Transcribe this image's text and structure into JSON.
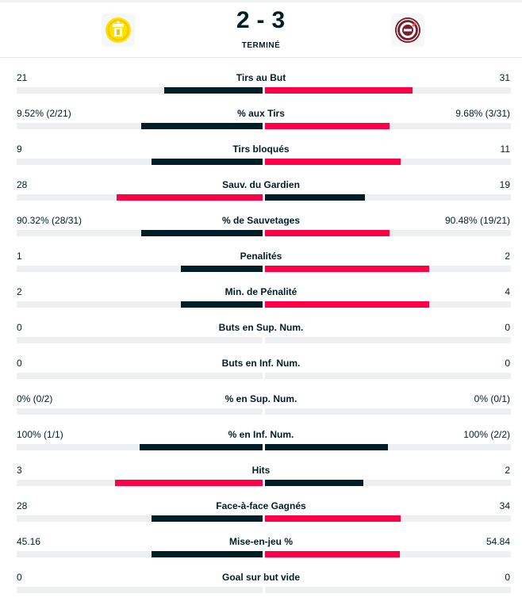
{
  "match": {
    "home_score": "2",
    "separator": "-",
    "away_score": "3",
    "status": "TERMINÉ"
  },
  "icons": {
    "home_logo": "home-team-crest-icon",
    "away_logo": "away-team-crest-icon"
  },
  "colors": {
    "leader_bar": "#ff0046",
    "trailer_bar": "#001e28",
    "track": "#eeeff1"
  },
  "stats": [
    {
      "label": "Tirs au But",
      "home": "21",
      "away": "31",
      "home_pct": 0.4,
      "away_pct": 0.6,
      "leader": "away"
    },
    {
      "label": "% aux Tirs",
      "home": "9.52% (2/21)",
      "away": "9.68% (3/31)",
      "home_pct": 0.495,
      "away_pct": 0.505,
      "leader": "away"
    },
    {
      "label": "Tirs bloqués",
      "home": "9",
      "away": "11",
      "home_pct": 0.45,
      "away_pct": 0.55,
      "leader": "away"
    },
    {
      "label": "Sauv. du Gardien",
      "home": "28",
      "away": "19",
      "home_pct": 0.595,
      "away_pct": 0.405,
      "leader": "home"
    },
    {
      "label": "% de Sauvetages",
      "home": "90.32% (28/31)",
      "away": "90.48% (19/21)",
      "home_pct": 0.495,
      "away_pct": 0.505,
      "leader": "away"
    },
    {
      "label": "Penalités",
      "home": "1",
      "away": "2",
      "home_pct": 0.333,
      "away_pct": 0.667,
      "leader": "away"
    },
    {
      "label": "Min. de Pénalité",
      "home": "2",
      "away": "4",
      "home_pct": 0.333,
      "away_pct": 0.667,
      "leader": "away"
    },
    {
      "label": "Buts en Sup. Num.",
      "home": "0",
      "away": "0",
      "home_pct": 0,
      "away_pct": 0,
      "leader": "none"
    },
    {
      "label": "Buts en Inf. Num.",
      "home": "0",
      "away": "0",
      "home_pct": 0,
      "away_pct": 0,
      "leader": "none"
    },
    {
      "label": "% en Sup. Num.",
      "home": "0% (0/2)",
      "away": "0% (0/1)",
      "home_pct": 0,
      "away_pct": 0,
      "leader": "none"
    },
    {
      "label": "% en Inf. Num.",
      "home": "100% (1/1)",
      "away": "100% (2/2)",
      "home_pct": 0.5,
      "away_pct": 0.5,
      "leader": "none"
    },
    {
      "label": "Hits",
      "home": "3",
      "away": "2",
      "home_pct": 0.6,
      "away_pct": 0.4,
      "leader": "home"
    },
    {
      "label": "Face-à-face Gagnés",
      "home": "28",
      "away": "34",
      "home_pct": 0.45,
      "away_pct": 0.55,
      "leader": "away"
    },
    {
      "label": "Mise-en-jeu %",
      "home": "45.16",
      "away": "54.84",
      "home_pct": 0.4516,
      "away_pct": 0.5484,
      "leader": "away"
    },
    {
      "label": "Goal sur but vide",
      "home": "0",
      "away": "0",
      "home_pct": 0,
      "away_pct": 0,
      "leader": "none"
    }
  ]
}
